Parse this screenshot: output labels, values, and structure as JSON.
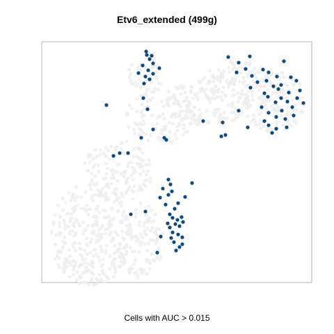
{
  "chart_data": {
    "type": "scatter",
    "title": "Etv6_extended (499g)",
    "xlabel": "Cells with AUC > 0.015",
    "ylabel": "",
    "axes_visible": false,
    "grid": false,
    "background_color": "#eeeeee",
    "highlight_color": "#0b4a7e",
    "xlim": [
      60,
      448
    ],
    "ylim": [
      406,
      60
    ],
    "series": [
      {
        "highlighted": true,
        "points": [
          [
            226,
            103
          ],
          [
            253,
            106
          ],
          [
            258,
            111
          ],
          [
            262,
            115
          ],
          [
            250,
            118
          ],
          [
            246,
            124
          ],
          [
            262,
            125
          ],
          [
            231,
            126
          ],
          [
            256,
            129
          ],
          [
            248,
            132
          ],
          [
            244,
            139
          ],
          [
            258,
            141
          ],
          [
            252,
            144
          ],
          [
            241,
            145
          ],
          [
            263,
            147
          ],
          [
            255,
            150
          ],
          [
            248,
            153
          ],
          [
            261,
            154
          ],
          [
            244,
            158
          ],
          [
            188,
            158
          ],
          [
            209,
            162
          ],
          [
            251,
            166
          ],
          [
            238,
            172
          ],
          [
            256,
            174
          ],
          [
            230,
            182
          ],
          [
            266,
            183
          ],
          [
            242,
            186
          ],
          [
            247,
            191
          ],
          [
            234,
            195
          ],
          [
            245,
            201
          ],
          [
            276,
            203
          ],
          [
            242,
            208
          ],
          [
            163,
            242
          ],
          [
            172,
            246
          ],
          [
            184,
            246
          ],
          [
            239,
            265
          ],
          [
            236,
            268
          ],
          [
            203,
            268
          ],
          [
            220,
            280
          ],
          [
            318,
            270
          ],
          [
            324,
            272
          ],
          [
            391,
            275
          ],
          [
            397,
            281
          ],
          [
            356,
            283
          ],
          [
            386,
            286
          ],
          [
            412,
            283
          ],
          [
            320,
            290
          ],
          [
            292,
            292
          ],
          [
            380,
            292
          ],
          [
            410,
            295
          ],
          [
            397,
            298
          ],
          [
            422,
            300
          ],
          [
            386,
            304
          ],
          [
            405,
            307
          ],
          [
            343,
            307
          ],
          [
            212,
            309
          ],
          [
            376,
            312
          ],
          [
            153,
            315
          ],
          [
            420,
            312
          ],
          [
            436,
            318
          ],
          [
            396,
            319
          ],
          [
            413,
            320
          ],
          [
            404,
            325
          ],
          [
            427,
            325
          ],
          [
            206,
            325
          ],
          [
            385,
            327
          ],
          [
            380,
            332
          ],
          [
            415,
            333
          ],
          [
            400,
            338
          ],
          [
            431,
            336
          ],
          [
            393,
            342
          ],
          [
            360,
            340
          ],
          [
            404,
            344
          ],
          [
            207,
            346
          ],
          [
            370,
            348
          ],
          [
            383,
            350
          ],
          [
            215,
            352
          ],
          [
            209,
            356
          ],
          [
            398,
            356
          ],
          [
            418,
            355
          ],
          [
            426,
            350
          ],
          [
            362,
            357
          ],
          [
            199,
            361
          ],
          [
            220,
            360
          ],
          [
            386,
            362
          ],
          [
            340,
            362
          ],
          [
            213,
            365
          ],
          [
            229,
            368
          ],
          [
            378,
            366
          ],
          [
            353,
            367
          ],
          [
            205,
            372
          ],
          [
            220,
            375
          ],
          [
            343,
            376
          ],
          [
            215,
            381
          ],
          [
            359,
            385
          ],
          [
            408,
            378
          ],
          [
            328,
            384
          ],
          [
            211,
            387
          ],
          [
            210,
            392
          ],
          [
            218,
            386
          ]
        ]
      }
    ]
  },
  "background_points": {
    "seed": 7,
    "note_free_clusters": [
      {
        "cx": 130,
        "cy": 130,
        "rx": 60,
        "ry": 75,
        "n": 320
      },
      {
        "cx": 200,
        "cy": 120,
        "rx": 35,
        "ry": 55,
        "n": 120
      },
      {
        "cx": 170,
        "cy": 220,
        "rx": 50,
        "ry": 45,
        "n": 140
      },
      {
        "cx": 230,
        "cy": 300,
        "rx": 50,
        "ry": 40,
        "n": 120
      },
      {
        "cx": 300,
        "cy": 320,
        "rx": 60,
        "ry": 35,
        "n": 160
      },
      {
        "cx": 395,
        "cy": 320,
        "rx": 45,
        "ry": 45,
        "n": 150
      },
      {
        "cx": 210,
        "cy": 360,
        "rx": 25,
        "ry": 30,
        "n": 50
      },
      {
        "cx": 340,
        "cy": 360,
        "rx": 40,
        "ry": 20,
        "n": 60
      }
    ]
  }
}
